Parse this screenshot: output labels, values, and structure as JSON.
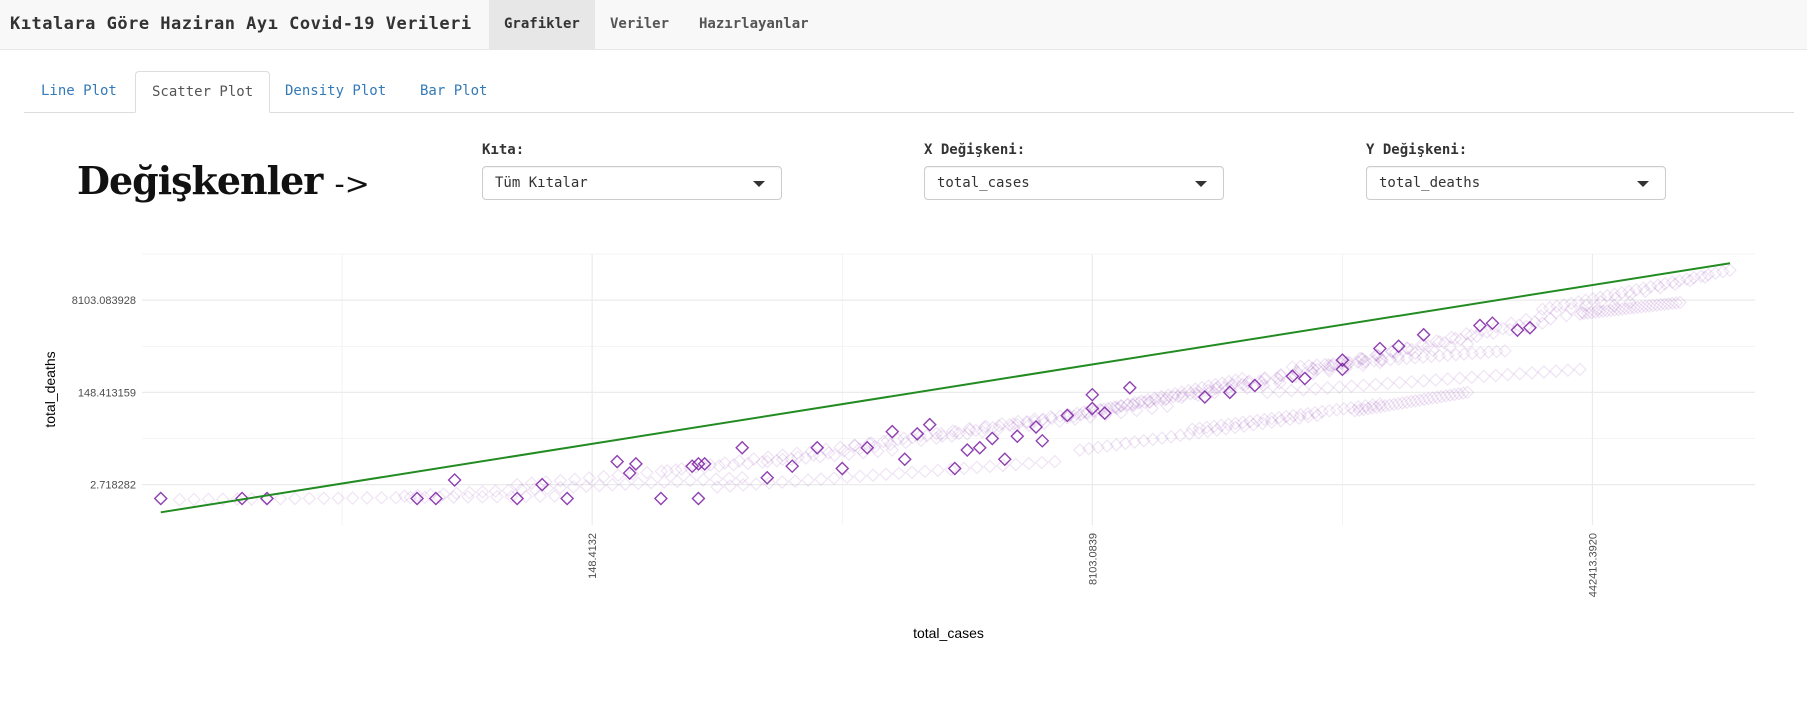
{
  "navbar": {
    "title": "Kıtalara Göre Haziran Ayı Covid-19 Verileri",
    "items": [
      {
        "label": "Grafikler",
        "active": true
      },
      {
        "label": "Veriler",
        "active": false
      },
      {
        "label": "Hazırlayanlar",
        "active": false
      }
    ]
  },
  "tabs": [
    {
      "label": "Line Plot",
      "active": false
    },
    {
      "label": "Scatter Plot",
      "active": true
    },
    {
      "label": "Density Plot",
      "active": false
    },
    {
      "label": "Bar Plot",
      "active": false
    }
  ],
  "heading": {
    "text": "Değişkenler",
    "arrow": "->"
  },
  "controls": {
    "continent": {
      "label": "Kıta:",
      "value": "Tüm Kıtalar"
    },
    "x_var": {
      "label": "X Değişkeni:",
      "value": "total_cases"
    },
    "y_var": {
      "label": "Y Değişkeni:",
      "value": "total_deaths"
    }
  },
  "colors": {
    "points": "#7b1fa2",
    "fit_line": "#228b22",
    "grid": "#ebebeb"
  },
  "chart_data": {
    "type": "scatter",
    "xlabel": "total_cases",
    "ylabel": "total_deaths",
    "x_scale": "log",
    "y_scale": "log",
    "xlim_ln": [
      1.4,
      14.3
    ],
    "ylim_ln": [
      -0.75,
      11.0
    ],
    "x_tick_labels": [
      "148.4132",
      "8103.0839",
      "442413.3920"
    ],
    "x_tick_ln": [
      5,
      9,
      13
    ],
    "y_tick_labels": [
      "2.718282",
      "148.413159",
      "8103.083928"
    ],
    "y_tick_ln": [
      1,
      5,
      9
    ],
    "marker": "open-diamond",
    "grid": true,
    "fit_line": {
      "x_ln": [
        1.55,
        14.1
      ],
      "y_ln": [
        -0.2,
        10.6
      ]
    },
    "points_ln": [
      [
        1.55,
        0.4
      ],
      [
        2.2,
        0.4
      ],
      [
        2.4,
        0.4
      ],
      [
        3.6,
        0.4
      ],
      [
        3.75,
        0.4
      ],
      [
        4.4,
        0.4
      ],
      [
        4.6,
        1.0
      ],
      [
        5.55,
        0.4
      ],
      [
        3.9,
        1.2
      ],
      [
        5.85,
        0.4
      ],
      [
        4.8,
        0.4
      ],
      [
        5.3,
        1.5
      ],
      [
        5.2,
        2.0
      ],
      [
        5.35,
        1.9
      ],
      [
        5.85,
        1.9
      ],
      [
        6.6,
        1.8
      ],
      [
        7.2,
        2.6
      ],
      [
        6.2,
        2.6
      ],
      [
        5.8,
        1.8
      ],
      [
        7.0,
        1.7
      ],
      [
        7.6,
        3.2
      ],
      [
        7.7,
        3.6
      ],
      [
        6.4,
        1.3
      ],
      [
        7.9,
        1.7
      ],
      [
        8.0,
        2.5
      ],
      [
        8.1,
        2.6
      ],
      [
        8.2,
        3.0
      ],
      [
        8.4,
        3.1
      ],
      [
        8.55,
        3.5
      ],
      [
        8.8,
        4.0
      ],
      [
        9.0,
        4.3
      ],
      [
        8.6,
        2.9
      ],
      [
        9.9,
        4.8
      ],
      [
        10.1,
        5.0
      ],
      [
        10.3,
        5.3
      ],
      [
        10.6,
        5.7
      ],
      [
        11.0,
        6.4
      ],
      [
        11.3,
        6.9
      ],
      [
        11.0,
        6.0
      ],
      [
        12.2,
        8.0
      ],
      [
        12.4,
        7.7
      ],
      [
        12.5,
        7.8
      ],
      [
        11.65,
        7.5
      ],
      [
        11.45,
        7.0
      ],
      [
        9.3,
        5.2
      ],
      [
        9.0,
        4.9
      ],
      [
        7.4,
        3.3
      ],
      [
        6.8,
        2.6
      ],
      [
        7.5,
        2.1
      ],
      [
        10.7,
        5.6
      ],
      [
        12.1,
        7.9
      ],
      [
        9.1,
        4.1
      ],
      [
        8.3,
        2.1
      ],
      [
        5.9,
        1.9
      ]
    ],
    "faint_bands_ln": [
      [
        1.7,
        0.35,
        4.7,
        0.5
      ],
      [
        3.5,
        0.5,
        6.2,
        1.3
      ],
      [
        4.4,
        1.0,
        7.4,
        2.5
      ],
      [
        5.6,
        1.6,
        8.6,
        3.8
      ],
      [
        6.4,
        2.0,
        9.6,
        4.4
      ],
      [
        7.1,
        2.7,
        10.5,
        5.4
      ],
      [
        7.8,
        3.1,
        11.3,
        6.3
      ],
      [
        8.4,
        3.6,
        12.0,
        7.1
      ],
      [
        9.2,
        4.3,
        12.6,
        8.0
      ],
      [
        10.0,
        5.2,
        13.3,
        8.9
      ],
      [
        10.8,
        6.0,
        13.9,
        10.0
      ],
      [
        12.6,
        8.6,
        14.1,
        10.3
      ],
      [
        9.8,
        3.4,
        11.3,
        4.5
      ],
      [
        10.4,
        5.0,
        12.9,
        6.0
      ],
      [
        11.1,
        4.2,
        12.0,
        5.0
      ],
      [
        12.9,
        8.4,
        13.7,
        8.9
      ],
      [
        8.9,
        2.5,
        10.8,
        4.0
      ],
      [
        6.0,
        0.9,
        8.7,
        2.0
      ],
      [
        10.6,
        6.1,
        12.3,
        6.8
      ],
      [
        8.8,
        3.9,
        10.2,
        5.6
      ]
    ]
  }
}
